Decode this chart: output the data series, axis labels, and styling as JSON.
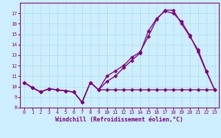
{
  "xlabel": "Windchill (Refroidissement éolien,°C)",
  "ylabel": "",
  "bg_color": "#cceeff",
  "line_color": "#800080",
  "grid_color": "#aadddd",
  "ylim": [
    8,
    18
  ],
  "xlim": [
    -0.5,
    23.5
  ],
  "yticks": [
    8,
    9,
    10,
    11,
    12,
    13,
    14,
    15,
    16,
    17
  ],
  "xticks": [
    0,
    1,
    2,
    3,
    4,
    5,
    6,
    7,
    8,
    9,
    10,
    11,
    12,
    13,
    14,
    15,
    16,
    17,
    18,
    19,
    20,
    21,
    22,
    23
  ],
  "line1_x": [
    0,
    1,
    2,
    3,
    4,
    5,
    6,
    7,
    8,
    9,
    10,
    11,
    12,
    13,
    14,
    15,
    16,
    17,
    18,
    19,
    20,
    21,
    22,
    23
  ],
  "line1_y": [
    10.4,
    9.9,
    9.5,
    9.8,
    9.7,
    9.6,
    9.5,
    8.5,
    10.4,
    9.7,
    9.7,
    9.7,
    9.7,
    9.7,
    9.7,
    9.7,
    9.7,
    9.7,
    9.7,
    9.7,
    9.7,
    9.7,
    9.7,
    9.7
  ],
  "line2_x": [
    0,
    1,
    2,
    3,
    4,
    5,
    6,
    7,
    8,
    9,
    10,
    11,
    12,
    13,
    14,
    15,
    16,
    17,
    18,
    19,
    20,
    21,
    22,
    23
  ],
  "line2_y": [
    10.4,
    9.9,
    9.5,
    9.8,
    9.7,
    9.6,
    9.5,
    8.5,
    10.4,
    9.7,
    11.0,
    11.5,
    12.0,
    12.8,
    13.3,
    14.8,
    16.4,
    17.3,
    17.3,
    16.0,
    14.8,
    13.5,
    11.5,
    9.7
  ],
  "line3_x": [
    0,
    1,
    2,
    3,
    4,
    5,
    6,
    7,
    8,
    9,
    10,
    11,
    12,
    13,
    14,
    15,
    16,
    17,
    18,
    19,
    20,
    21,
    22,
    23
  ],
  "line3_y": [
    10.4,
    9.9,
    9.5,
    9.8,
    9.7,
    9.6,
    9.5,
    8.5,
    10.4,
    9.7,
    10.5,
    11.0,
    11.8,
    12.5,
    13.2,
    15.3,
    16.5,
    17.2,
    17.0,
    16.2,
    14.9,
    13.3,
    11.4,
    9.7
  ],
  "marker": "D",
  "marker_size": 2.5,
  "linewidth": 1.0,
  "tick_fontsize": 5,
  "xlabel_fontsize": 6,
  "title_fontsize": 6
}
